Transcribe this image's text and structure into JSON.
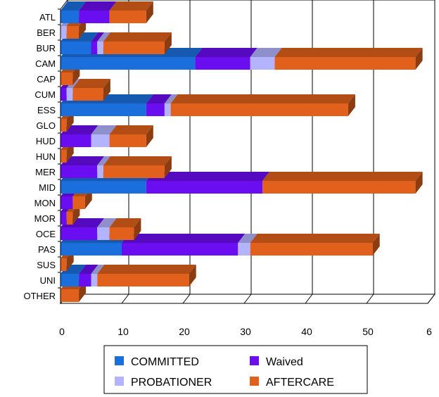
{
  "chart_data": {
    "type": "bar",
    "orientation": "horizontal",
    "stacked": true,
    "three_d": true,
    "categories": [
      "ATL",
      "BER",
      "BUR",
      "CAM",
      "CAP",
      "CUM",
      "ESS",
      "GLO",
      "HUD",
      "HUN",
      "MER",
      "MID",
      "MON",
      "MOR",
      "OCE",
      "PAS",
      "SUS",
      "UNI",
      "OTHER"
    ],
    "series": [
      {
        "name": "COMMITTED",
        "color": "#1a6fdc",
        "values": [
          3,
          0,
          5,
          22,
          0,
          0,
          14,
          0,
          0,
          0,
          0,
          14,
          0,
          0,
          0,
          10,
          0,
          3,
          0
        ]
      },
      {
        "name": "Waived",
        "color": "#6a0df0",
        "values": [
          5,
          0,
          1,
          9,
          0,
          1,
          3,
          0,
          5,
          0,
          6,
          19,
          2,
          1,
          6,
          19,
          0,
          2,
          0
        ]
      },
      {
        "name": "PROBATIONER",
        "color": "#b3b3ff",
        "values": [
          0,
          1,
          1,
          4,
          0,
          1,
          1,
          0,
          3,
          0,
          1,
          0,
          0,
          0,
          2,
          2,
          0,
          1,
          0
        ]
      },
      {
        "name": "AFTERCARE",
        "color": "#e0601c",
        "values": [
          6,
          2,
          10,
          23,
          2,
          5,
          29,
          1,
          6,
          1,
          10,
          25,
          2,
          1,
          4,
          20,
          1,
          15,
          3
        ]
      }
    ],
    "xaxis": {
      "ticks": [
        "0",
        "10",
        "20",
        "30",
        "40",
        "50",
        "6"
      ],
      "range": [
        0,
        60
      ]
    },
    "grid": true,
    "legend_position": "bottom",
    "title": "",
    "xlabel": "",
    "ylabel": ""
  }
}
